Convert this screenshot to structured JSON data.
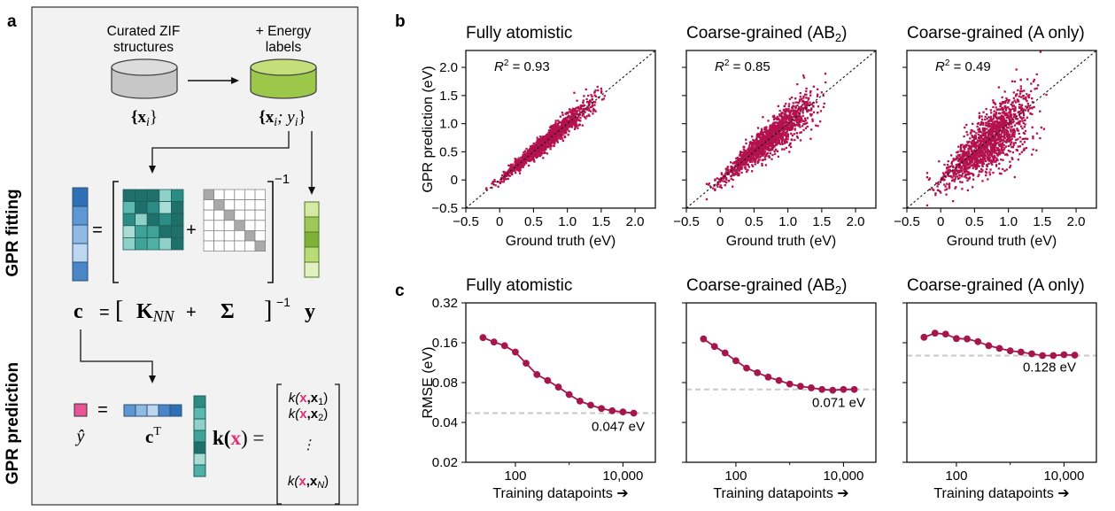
{
  "colors": {
    "scatter": "#b3124e",
    "line": "#a5164c",
    "panel_bg": "#f3f3f3",
    "teal": "#2f9d95",
    "blue": "#3c7fc0",
    "green": "#8fba3a",
    "pink": "#e0508c",
    "ref_dashed": "#c8c8c8"
  },
  "panel_labels": {
    "a": "a",
    "b": "b",
    "c": "c"
  },
  "schematic": {
    "db1_label_line1": "Curated ZIF",
    "db1_label_line2": "structures",
    "db1_math": "{x",
    "db1_math_sub": "i",
    "db1_math_end": "}",
    "db2_label_line1": "+ Energy",
    "db2_label_line2": "labels",
    "db2_math": "{x",
    "db2_math_sub": "i",
    "db2_math_mid": "; y",
    "db2_math_sub2": "i",
    "db2_math_end": "}",
    "fitting_label": "GPR fitting",
    "prediction_label": "GPR prediction",
    "eq_equals": "=",
    "eq_plus": "+",
    "eq_inverse": "−1",
    "fit_c": "c",
    "fit_eq": "=",
    "fit_bracket_open": "[",
    "fit_K": "K",
    "fit_K_sub": "NN",
    "fit_plus": "+",
    "fit_sigma": "Σ",
    "fit_bracket_close": "]",
    "fit_inverse": "−1",
    "fit_y": "y",
    "pred_equals": "=",
    "pred_yhat": "ŷ",
    "pred_cT": "c",
    "pred_cT_sup": "T",
    "pred_k": "k(",
    "pred_k_x": "x",
    "pred_k_end": ") =",
    "kernel_rows": [
      {
        "pre": "k(",
        "x": "x",
        "post": ",x",
        "sub": "1",
        "end": ")"
      },
      {
        "pre": "k(",
        "x": "x",
        "post": ",x",
        "sub": "2",
        "end": ")"
      },
      {
        "pre": "⋮",
        "x": "",
        "post": "",
        "sub": "",
        "end": ""
      },
      {
        "pre": "k(",
        "x": "x",
        "post": ",x",
        "sub": "N",
        "end": ")"
      }
    ]
  },
  "chart_data": [
    {
      "type": "scatter",
      "panel": "b",
      "title": "Fully atomistic",
      "xlabel": "Ground truth (eV)",
      "ylabel": "GPR prediction (eV)",
      "xlim": [
        -0.5,
        2.3
      ],
      "ylim": [
        -0.5,
        2.3
      ],
      "xticks": [
        "−0.5",
        "0",
        "0.5",
        "1.0",
        "1.5",
        "2.0"
      ],
      "xtick_values": [
        -0.5,
        0,
        0.5,
        1.0,
        1.5,
        2.0
      ],
      "yticks": [
        "−0.5",
        "0",
        "0.5",
        "1.0",
        "1.5",
        "2.0"
      ],
      "ytick_values": [
        -0.5,
        0,
        0.5,
        1.0,
        1.5,
        2.0
      ],
      "annotation_r2_label": "R",
      "annotation_r2_sup": "2",
      "annotation_r2_value": " = 0.93",
      "r2": 0.93,
      "spread": 0.07,
      "x_range": [
        -0.2,
        1.55
      ],
      "reference_line": "y = x (dashed)"
    },
    {
      "type": "scatter",
      "panel": "b",
      "title_main": "Coarse-grained (AB",
      "title_sub": "2",
      "title_end": ")",
      "xlabel": "Ground truth (eV)",
      "xlim": [
        -0.5,
        2.3
      ],
      "ylim": [
        -0.5,
        2.3
      ],
      "xticks": [
        "−0.5",
        "0",
        "0.5",
        "1.0",
        "1.5",
        "2.0"
      ],
      "xtick_values": [
        -0.5,
        0,
        0.5,
        1.0,
        1.5,
        2.0
      ],
      "annotation_r2_label": "R",
      "annotation_r2_sup": "2",
      "annotation_r2_value": " = 0.85",
      "r2": 0.85,
      "spread": 0.12,
      "x_range": [
        -0.2,
        1.6
      ],
      "reference_line": "y = x (dashed)"
    },
    {
      "type": "scatter",
      "panel": "b",
      "title": "Coarse-grained (A only)",
      "xlabel": "Ground truth (eV)",
      "xlim": [
        -0.5,
        2.3
      ],
      "ylim": [
        -0.5,
        2.3
      ],
      "xticks": [
        "−0.5",
        "0",
        "0.5",
        "1.0",
        "1.5",
        "2.0"
      ],
      "xtick_values": [
        -0.5,
        0,
        0.5,
        1.0,
        1.5,
        2.0
      ],
      "annotation_r2_label": "R",
      "annotation_r2_sup": "2",
      "annotation_r2_value": " = 0.49",
      "r2": 0.49,
      "spread": 0.22,
      "x_range": [
        -0.2,
        1.6
      ],
      "reference_line": "y = x (dashed)"
    },
    {
      "type": "line",
      "panel": "c",
      "title": "Fully atomistic",
      "xlabel": "Training datapoints ➔",
      "ylabel": "RMSE (eV)",
      "xscale": "log",
      "yscale": "log",
      "xlim": [
        12,
        40000
      ],
      "ylim": [
        0.02,
        0.32
      ],
      "xticks": [
        "100",
        "10,000"
      ],
      "xtick_values": [
        100,
        10000
      ],
      "yticks": [
        "0.32",
        "0.16",
        "0.08",
        "0.04",
        "0.02"
      ],
      "ytick_values": [
        0.32,
        0.16,
        0.08,
        0.04,
        0.02
      ],
      "x": [
        25,
        40,
        63,
        100,
        158,
        251,
        398,
        631,
        1000,
        1585,
        2512,
        3981,
        6310,
        10000,
        15849
      ],
      "y": [
        0.175,
        0.162,
        0.152,
        0.136,
        0.112,
        0.092,
        0.083,
        0.074,
        0.065,
        0.058,
        0.054,
        0.051,
        0.049,
        0.048,
        0.047
      ],
      "reference_value": 0.047,
      "reference_label": "0.047 eV"
    },
    {
      "type": "line",
      "panel": "c",
      "title_main": "Coarse-grained (AB",
      "title_sub": "2",
      "title_end": ")",
      "xlabel": "Training datapoints ➔",
      "xscale": "log",
      "yscale": "log",
      "xlim": [
        12,
        40000
      ],
      "ylim": [
        0.02,
        0.32
      ],
      "xticks": [
        "100",
        "10,000"
      ],
      "xtick_values": [
        100,
        10000
      ],
      "x": [
        25,
        40,
        63,
        100,
        158,
        251,
        398,
        631,
        1000,
        1585,
        2512,
        3981,
        6310,
        10000,
        15849
      ],
      "y": [
        0.171,
        0.15,
        0.134,
        0.117,
        0.103,
        0.095,
        0.088,
        0.083,
        0.078,
        0.075,
        0.073,
        0.071,
        0.07,
        0.071,
        0.071
      ],
      "reference_value": 0.071,
      "reference_label": "0.071 eV"
    },
    {
      "type": "line",
      "panel": "c",
      "title": "Coarse-grained (A only)",
      "xlabel": "Training datapoints ➔",
      "xscale": "log",
      "yscale": "log",
      "xlim": [
        12,
        40000
      ],
      "ylim": [
        0.02,
        0.32
      ],
      "xticks": [
        "100",
        "10,000"
      ],
      "xtick_values": [
        100,
        10000
      ],
      "x": [
        25,
        40,
        63,
        100,
        158,
        251,
        398,
        631,
        1000,
        1585,
        2512,
        3981,
        6310,
        10000,
        15849
      ],
      "y": [
        0.176,
        0.189,
        0.186,
        0.172,
        0.171,
        0.163,
        0.152,
        0.145,
        0.139,
        0.136,
        0.132,
        0.128,
        0.128,
        0.13,
        0.129
      ],
      "reference_value": 0.128,
      "reference_label": "0.128 eV"
    }
  ]
}
